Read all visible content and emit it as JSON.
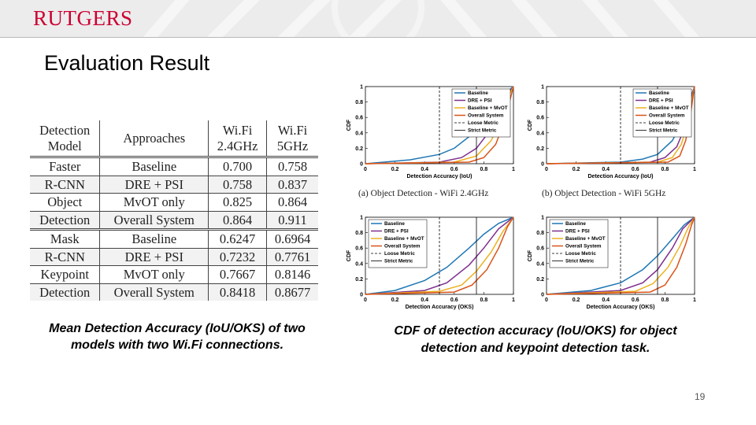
{
  "header": {
    "logo": "RUTGERS"
  },
  "title": "Evaluation Result",
  "table": {
    "headers": [
      [
        "Detection",
        "Model"
      ],
      [
        "Approaches"
      ],
      [
        "Wi.Fi",
        "2.4GHz"
      ],
      [
        "Wi.Fi",
        "5GHz"
      ]
    ],
    "groups": [
      {
        "rows": [
          {
            "model": "Faster",
            "approach": "Baseline",
            "wifi24": "0.700",
            "wifi5": "0.758"
          },
          {
            "model": "R-CNN",
            "approach": "DRE + PSI",
            "wifi24": "0.758",
            "wifi5": "0.837"
          },
          {
            "model": "Object",
            "approach": "MvOT only",
            "wifi24": "0.825",
            "wifi5": "0.864"
          },
          {
            "model": "Detection",
            "approach": "Overall System",
            "wifi24": "0.864",
            "wifi5": "0.911"
          }
        ]
      },
      {
        "rows": [
          {
            "model": "Mask",
            "approach": "Baseline",
            "wifi24": "0.6247",
            "wifi5": "0.6964"
          },
          {
            "model": "R-CNN",
            "approach": "DRE + PSI",
            "wifi24": "0.7232",
            "wifi5": "0.7761"
          },
          {
            "model": "Keypoint",
            "approach": "MvOT only",
            "wifi24": "0.7667",
            "wifi5": "0.8146"
          },
          {
            "model": "Detection",
            "approach": "Overall System",
            "wifi24": "0.8418",
            "wifi5": "0.8677"
          }
        ]
      }
    ]
  },
  "caption_left": "Mean Detection Accuracy (IoU/OKS) of two models with two Wi.Fi connections.",
  "caption_right": "CDF of detection accuracy (IoU/OKS) for object detection and keypoint detection task.",
  "page_number": "19",
  "colors": {
    "Baseline": "#1f77b4",
    "DRE + PSI": "#7e2f8e",
    "Baseline + MvOT": "#edb120",
    "Overall System": "#d95319",
    "Loose Metric": "#000000",
    "Strict Metric": "#000000",
    "brand": "#cc0033"
  },
  "chart_data": [
    {
      "type": "line",
      "sublabel": "(a)  Object Detection - WiFi 2.4GHz",
      "xlabel": "Detection Accuracy (IoU)",
      "ylabel": "CDF",
      "xlim": [
        0,
        1
      ],
      "ylim": [
        0,
        1
      ],
      "xticks": [
        "0",
        "0.2",
        "0.4",
        "0.6",
        "0.8",
        "1"
      ],
      "yticks": [
        "0",
        "0.2",
        "0.4",
        "0.6",
        "0.8",
        "1"
      ],
      "grid": false,
      "legend_position": "top-right",
      "series": [
        {
          "name": "Baseline",
          "style": "solid",
          "x": [
            0,
            0.3,
            0.5,
            0.6,
            0.7,
            0.8,
            0.9,
            0.95,
            1.0
          ],
          "y": [
            0,
            0.05,
            0.12,
            0.2,
            0.35,
            0.55,
            0.8,
            0.92,
            1
          ]
        },
        {
          "name": "DRE + PSI",
          "style": "solid",
          "x": [
            0,
            0.5,
            0.65,
            0.75,
            0.85,
            0.92,
            0.97,
            1.0
          ],
          "y": [
            0,
            0.02,
            0.08,
            0.2,
            0.45,
            0.72,
            0.92,
            1
          ]
        },
        {
          "name": "Baseline + MvOT",
          "style": "solid",
          "x": [
            0,
            0.6,
            0.75,
            0.85,
            0.92,
            0.96,
            1.0
          ],
          "y": [
            0,
            0.02,
            0.1,
            0.3,
            0.6,
            0.85,
            1
          ]
        },
        {
          "name": "Overall System",
          "style": "solid",
          "x": [
            0,
            0.7,
            0.8,
            0.88,
            0.94,
            0.98,
            1.0
          ],
          "y": [
            0,
            0.02,
            0.08,
            0.25,
            0.55,
            0.85,
            1
          ]
        },
        {
          "name": "Loose Metric",
          "style": "dashed",
          "x": [
            0.5,
            0.5
          ],
          "y": [
            0,
            1
          ]
        },
        {
          "name": "Strict Metric",
          "style": "solid-thin",
          "x": [
            0.75,
            0.75
          ],
          "y": [
            0,
            1
          ]
        }
      ]
    },
    {
      "type": "line",
      "sublabel": "(b)  Object Detection - WiFi 5GHz",
      "xlabel": "Detection Accuracy (IoU)",
      "ylabel": "CDF",
      "xlim": [
        0,
        1
      ],
      "ylim": [
        0,
        1
      ],
      "xticks": [
        "0",
        "0.2",
        "0.4",
        "0.6",
        "0.8",
        "1"
      ],
      "yticks": [
        "0",
        "0.2",
        "0.4",
        "0.6",
        "0.8",
        "1"
      ],
      "grid": false,
      "legend_position": "top-right",
      "series": [
        {
          "name": "Baseline",
          "style": "solid",
          "x": [
            0,
            0.5,
            0.65,
            0.75,
            0.85,
            0.92,
            0.97,
            1.0
          ],
          "y": [
            0,
            0.02,
            0.06,
            0.12,
            0.3,
            0.55,
            0.85,
            1
          ]
        },
        {
          "name": "DRE + PSI",
          "style": "solid",
          "x": [
            0,
            0.7,
            0.8,
            0.88,
            0.93,
            0.97,
            1.0
          ],
          "y": [
            0,
            0.02,
            0.08,
            0.22,
            0.45,
            0.78,
            1
          ]
        },
        {
          "name": "Baseline + MvOT",
          "style": "solid",
          "x": [
            0,
            0.75,
            0.85,
            0.91,
            0.95,
            0.98,
            1.0
          ],
          "y": [
            0,
            0.02,
            0.08,
            0.25,
            0.5,
            0.82,
            1
          ]
        },
        {
          "name": "Overall System",
          "style": "solid",
          "x": [
            0,
            0.82,
            0.9,
            0.94,
            0.97,
            0.99,
            1.0
          ],
          "y": [
            0,
            0.02,
            0.1,
            0.3,
            0.6,
            0.88,
            1
          ]
        },
        {
          "name": "Loose Metric",
          "style": "dashed",
          "x": [
            0.5,
            0.5
          ],
          "y": [
            0,
            1
          ]
        },
        {
          "name": "Strict Metric",
          "style": "solid-thin",
          "x": [
            0.75,
            0.75
          ],
          "y": [
            0,
            1
          ]
        }
      ]
    },
    {
      "type": "line",
      "xlabel": "Detection Accuracy (OKS)",
      "ylabel": "CDF",
      "xlim": [
        0,
        1
      ],
      "ylim": [
        0,
        1
      ],
      "xticks": [
        "0",
        "0.2",
        "0.4",
        "0.6",
        "0.8",
        "1"
      ],
      "yticks": [
        "0",
        "0.2",
        "0.4",
        "0.6",
        "0.8",
        "1"
      ],
      "grid": false,
      "legend_position": "top-left",
      "series": [
        {
          "name": "Baseline",
          "style": "solid",
          "x": [
            0,
            0.2,
            0.4,
            0.55,
            0.7,
            0.8,
            0.9,
            1.0
          ],
          "y": [
            0,
            0.05,
            0.18,
            0.35,
            0.6,
            0.78,
            0.92,
            1
          ]
        },
        {
          "name": "DRE + PSI",
          "style": "solid",
          "x": [
            0,
            0.4,
            0.55,
            0.7,
            0.8,
            0.9,
            1.0
          ],
          "y": [
            0,
            0.05,
            0.15,
            0.38,
            0.6,
            0.85,
            1
          ]
        },
        {
          "name": "Baseline + MvOT",
          "style": "solid",
          "x": [
            0,
            0.5,
            0.65,
            0.75,
            0.85,
            0.93,
            1.0
          ],
          "y": [
            0,
            0.04,
            0.12,
            0.3,
            0.55,
            0.82,
            1
          ]
        },
        {
          "name": "Overall System",
          "style": "solid",
          "x": [
            0,
            0.6,
            0.72,
            0.82,
            0.9,
            0.96,
            1.0
          ],
          "y": [
            0,
            0.03,
            0.12,
            0.32,
            0.6,
            0.88,
            1
          ]
        },
        {
          "name": "Loose Metric",
          "style": "dashed",
          "x": [
            0.5,
            0.5
          ],
          "y": [
            0,
            1
          ]
        },
        {
          "name": "Strict Metric",
          "style": "solid-thin",
          "x": [
            0.75,
            0.75
          ],
          "y": [
            0,
            1
          ]
        }
      ]
    },
    {
      "type": "line",
      "xlabel": "Detection Accuracy (OKS)",
      "ylabel": "CDF",
      "xlim": [
        0,
        1
      ],
      "ylim": [
        0,
        1
      ],
      "xticks": [
        "0",
        "0.2",
        "0.4",
        "0.6",
        "0.8",
        "1"
      ],
      "yticks": [
        "0",
        "0.2",
        "0.4",
        "0.6",
        "0.8",
        "1"
      ],
      "grid": false,
      "legend_position": "top-left",
      "series": [
        {
          "name": "Baseline",
          "style": "solid",
          "x": [
            0,
            0.3,
            0.5,
            0.65,
            0.75,
            0.85,
            0.93,
            1.0
          ],
          "y": [
            0,
            0.05,
            0.15,
            0.32,
            0.5,
            0.72,
            0.9,
            1
          ]
        },
        {
          "name": "DRE + PSI",
          "style": "solid",
          "x": [
            0,
            0.5,
            0.65,
            0.75,
            0.85,
            0.92,
            1.0
          ],
          "y": [
            0,
            0.05,
            0.15,
            0.32,
            0.6,
            0.85,
            1
          ]
        },
        {
          "name": "Baseline + MvOT",
          "style": "solid",
          "x": [
            0,
            0.6,
            0.72,
            0.82,
            0.9,
            0.96,
            1.0
          ],
          "y": [
            0,
            0.04,
            0.14,
            0.35,
            0.62,
            0.88,
            1
          ]
        },
        {
          "name": "Overall System",
          "style": "solid",
          "x": [
            0,
            0.7,
            0.8,
            0.88,
            0.94,
            0.98,
            1.0
          ],
          "y": [
            0,
            0.03,
            0.12,
            0.35,
            0.65,
            0.9,
            1
          ]
        },
        {
          "name": "Loose Metric",
          "style": "dashed",
          "x": [
            0.5,
            0.5
          ],
          "y": [
            0,
            1
          ]
        },
        {
          "name": "Strict Metric",
          "style": "solid-thin",
          "x": [
            0.75,
            0.75
          ],
          "y": [
            0,
            1
          ]
        }
      ]
    }
  ]
}
